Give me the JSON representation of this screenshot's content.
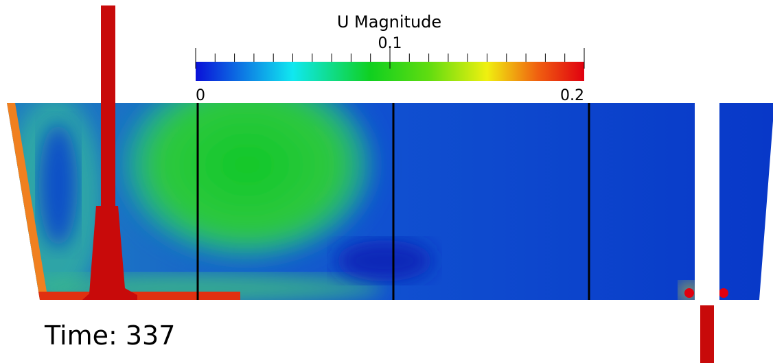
{
  "colorbar": {
    "title": "U Magnitude",
    "range": [
      0,
      0.2
    ],
    "ticks": [
      0,
      0.1,
      0.2
    ]
  },
  "time_label": "Time: 337"
}
